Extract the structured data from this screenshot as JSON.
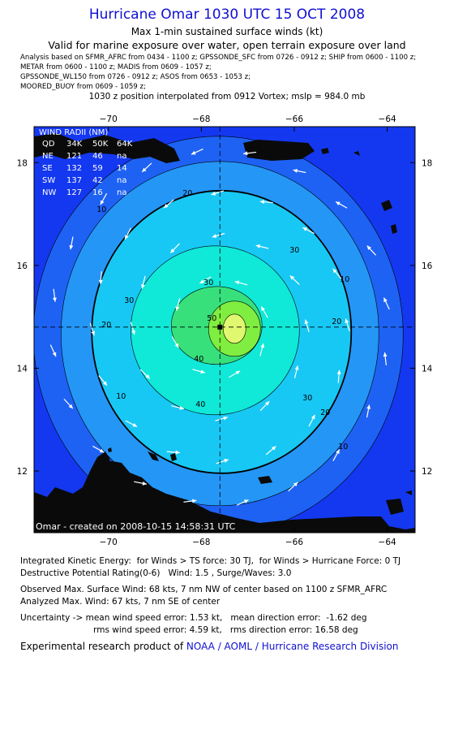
{
  "header": {
    "title": "Hurricane Omar 1030 UTC 15 OCT 2008",
    "subtitle": "Max 1-min sustained surface winds (kt)",
    "validity": "Valid for marine exposure over water, open terrain exposure over land",
    "sources": [
      "Analysis based on  SFMR_AFRC from 0434 - 1100 z;  GPSSONDE_SFC from 0726 - 0912 z;  SHIP from 0600 - 1100 z;",
      "METAR from 0600 - 1100 z;  MADIS from 0609 - 1057 z;",
      "GPSSONDE_WL150 from 0726 - 0912 z;  ASOS from 0653 - 1053 z;",
      "MOORED_BUOY from 0609 - 1059 z;"
    ],
    "position_note": "1030 z position interpolated from 0912 Vortex; mslp = 984.0 mb"
  },
  "map": {
    "lon_range": [
      -71.6,
      -63.4
    ],
    "lat_range": [
      10.8,
      18.7
    ],
    "lon_ticks": [
      -70,
      -68,
      -66,
      -64
    ],
    "lat_ticks": [
      12,
      14,
      16,
      18
    ],
    "lon_tick_labels": [
      "−70",
      "−68",
      "−66",
      "−64"
    ],
    "lat_tick_labels": [
      "12",
      "14",
      "16",
      "18"
    ],
    "center": {
      "lon": -67.6,
      "lat": 14.8
    },
    "contour_labels": [
      "10",
      "10",
      "10",
      "10",
      "20",
      "20",
      "20",
      "20",
      "30",
      "30",
      "30",
      "30",
      "40",
      "40",
      "50"
    ],
    "wind_radii": {
      "title": "WIND RADII (NM)",
      "header": [
        "QD",
        "34K",
        "50K",
        "64K"
      ],
      "rows": [
        [
          "NE",
          "121",
          "46",
          "na"
        ],
        [
          "SE",
          "132",
          "59",
          "14"
        ],
        [
          "SW",
          "137",
          "42",
          "na"
        ],
        [
          "NW",
          "127",
          "16",
          "na"
        ]
      ]
    },
    "created": "Omar - created on 2008-10-15 14:58:31 UTC",
    "colors": {
      "ocean": "#1438f0",
      "level10": "#1e62f4",
      "level20": "#2496f6",
      "level30": "#18c8f4",
      "level40": "#10e8d8",
      "level50": "#38e07c",
      "level60": "#80ee40",
      "level64": "#e0f870",
      "land": "#0a0a0a"
    }
  },
  "footer": {
    "ike": "Integrated Kinetic Energy:  for Winds > TS force: 30 TJ,  for Winds > Hurricane Force: 0 TJ",
    "dpr": "Destructive Potential Rating(0-6)   Wind: 1.5 , Surge/Waves: 3.0",
    "observed": "Observed Max. Surface Wind: 68 kts, 7 nm NW of center based on 1100 z SFMR_AFRC",
    "analyzed": "Analyzed Max. Wind: 67 kts, 7 nm SE of center",
    "uncertainty1": "Uncertainty -> mean wind speed error: 1.53 kt,   mean direction error:  -1.62 deg",
    "uncertainty2": "                           rms wind speed error: 4.59 kt,   rms direction error: 16.58 deg",
    "credit_prefix": "Experimental research product of ",
    "credit_link": "NOAA / AOML / Hurricane Research Division"
  }
}
